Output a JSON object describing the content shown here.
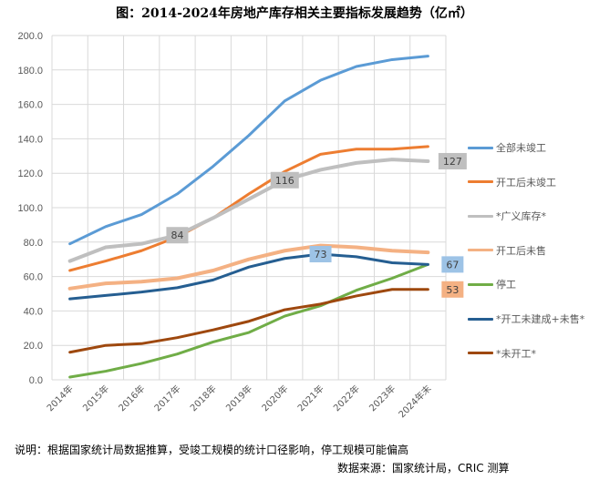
{
  "chart_data": {
    "type": "line",
    "title": "图：2014-2024年房地产库存相关主要指标发展趋势（亿㎡）",
    "categories": [
      "2014年",
      "2015年",
      "2016年",
      "2017年",
      "2018年",
      "2019年",
      "2020年",
      "2021年",
      "2022年",
      "2023年",
      "2024年末"
    ],
    "ylim": [
      0,
      200
    ],
    "yticks": [
      "0.0",
      "20.0",
      "40.0",
      "60.0",
      "80.0",
      "100.0",
      "120.0",
      "140.0",
      "160.0",
      "180.0",
      "200.0"
    ],
    "grid": true,
    "legend_position": "right",
    "series": [
      {
        "name": "全部未竣工",
        "color": "#5B9BD5",
        "width": 3,
        "values": [
          79,
          89,
          96,
          108,
          124,
          142,
          162,
          174,
          182,
          186,
          188
        ]
      },
      {
        "name": "开工后未竣工",
        "color": "#ED7D31",
        "width": 3,
        "values": [
          63.5,
          69,
          75,
          83,
          94,
          108,
          121,
          131,
          134,
          134,
          135.5
        ]
      },
      {
        "name": "*广义库存*",
        "color": "#BFBFBF",
        "width": 4,
        "values": [
          69,
          77,
          79,
          84,
          94,
          105,
          116,
          122,
          126,
          128,
          127
        ]
      },
      {
        "name": "开工后未售",
        "color": "#F4B183",
        "width": 4,
        "values": [
          53,
          56,
          57,
          59,
          63.5,
          70,
          75,
          78,
          77,
          75,
          74
        ]
      },
      {
        "name": "停工",
        "color": "#70AD47",
        "width": 3,
        "values": [
          1.6,
          5,
          9.5,
          15,
          22,
          27.5,
          37,
          43,
          52,
          59,
          67
        ]
      },
      {
        "name": "*开工未建成+未售*",
        "color": "#255E91",
        "width": 3,
        "values": [
          47,
          49,
          51,
          53.5,
          58,
          65.5,
          70.5,
          73,
          71.5,
          68,
          67
        ]
      },
      {
        "name": "*未开工*",
        "color": "#9E480E",
        "width": 3,
        "values": [
          16,
          20,
          21,
          24.5,
          29,
          34,
          40.7,
          44,
          48.7,
          52.5,
          52.5
        ]
      }
    ],
    "data_labels": [
      {
        "series": 2,
        "index": 3,
        "text": "84",
        "bg": "#BFBFBF"
      },
      {
        "series": 2,
        "index": 6,
        "text": "116",
        "bg": "#BFBFBF"
      },
      {
        "series": 2,
        "index": 10,
        "text": "127",
        "bg": "#BFBFBF",
        "side": "right"
      },
      {
        "series": 5,
        "index": 7,
        "text": "73",
        "bg": "#9DC3E6"
      },
      {
        "series": 5,
        "index": 10,
        "text": "67",
        "bg": "#9DC3E6",
        "side": "right"
      },
      {
        "series": 6,
        "index": 10,
        "text": "53",
        "bg": "#F4B183",
        "side": "right"
      }
    ]
  },
  "notes": {
    "explanation": "说明：根据国家统计局数据推算，受竣工规模的统计口径影响，停工规模可能偏高",
    "source": "数据来源：国家统计局，CRIC 测算"
  }
}
